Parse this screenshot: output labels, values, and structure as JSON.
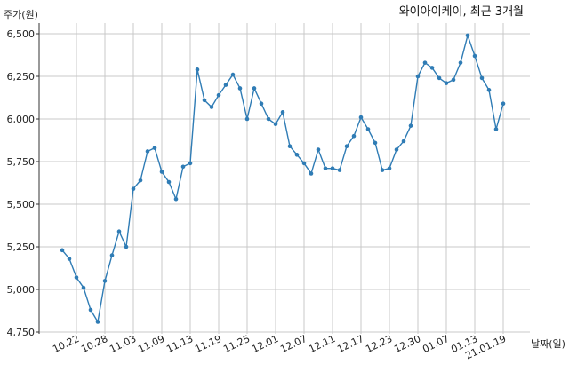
{
  "chart_data": {
    "type": "line",
    "title": "와이아이케이, 최근 3개월",
    "ylabel": "주가(원)",
    "xlabel": "날짜(일)",
    "ylim": [
      4750,
      6600
    ],
    "yticks": [
      4750,
      5000,
      5250,
      5500,
      5750,
      6000,
      6250,
      6500
    ],
    "ytick_labels": [
      "4,750",
      "5,000",
      "5,250",
      "5,500",
      "5,750",
      "6,000",
      "6,250",
      "6,500"
    ],
    "x_tick_labels": [
      "10.22",
      "10.28",
      "11.03",
      "11.09",
      "11.13",
      "11.19",
      "11.25",
      "12.01",
      "12.07",
      "12.11",
      "12.17",
      "12.23",
      "12.30",
      "01.07",
      "01.13",
      "21.01.19"
    ],
    "x_tick_index": [
      2,
      6,
      10,
      14,
      18,
      22,
      26,
      30,
      34,
      38,
      42,
      46,
      50,
      54,
      58,
      62
    ],
    "grid": true,
    "color": "#2f7cb5",
    "series": [
      {
        "values": [
          5230,
          5180,
          5070,
          5010,
          4880,
          4810,
          5050,
          5200,
          5340,
          5250,
          5590,
          5640,
          5810,
          5830,
          5690,
          5630,
          5530,
          5720,
          5740,
          6290,
          6110,
          6070,
          6140,
          6200,
          6260,
          6180,
          6000,
          6180,
          6090,
          6000,
          5970,
          6040,
          5840,
          5790,
          5740,
          5680,
          5820,
          5710,
          5710,
          5700,
          5840,
          5900,
          6010,
          5940,
          5860,
          5700,
          5710,
          5820,
          5870,
          5960,
          6250,
          6330,
          6300,
          6240,
          6210,
          6230,
          6330,
          6490,
          6370,
          6240,
          6170,
          5940,
          6090
        ]
      }
    ]
  }
}
